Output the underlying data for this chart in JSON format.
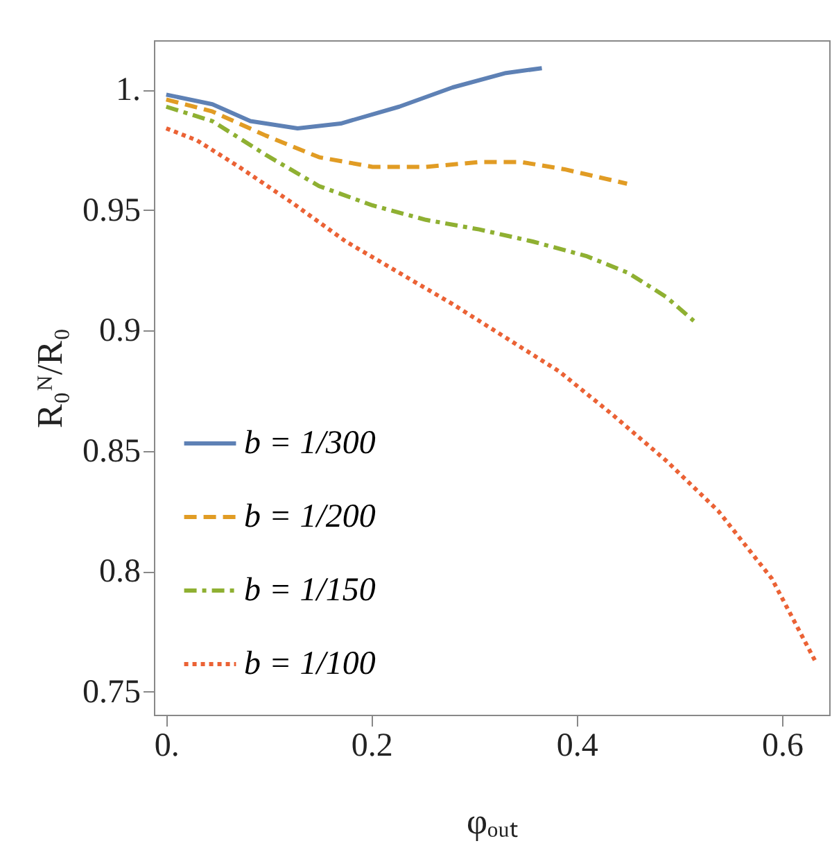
{
  "chart_data": {
    "type": "line",
    "xlabel": "φₒᵤₜ",
    "ylabel": "R₀ᴺ/R₀",
    "xlim": [
      -0.012,
      0.646
    ],
    "ylim": [
      0.7404,
      1.0206
    ],
    "xticks": [
      {
        "value": 0,
        "label": "0."
      },
      0.2,
      0.4,
      0.6
    ],
    "yticks": [
      0.75,
      0.8,
      0.85,
      0.9,
      0.95,
      {
        "value": 1,
        "label": "1."
      }
    ],
    "grid": false,
    "legend": "left",
    "marker": "none",
    "series": [
      {
        "name": "b = 1/300",
        "color": "#5e81b5",
        "line_style": "solid",
        "x": [
          0,
          0.045,
          0.082,
          0.128,
          0.17,
          0.227,
          0.279,
          0.331,
          0.366
        ],
        "values": [
          0.998,
          0.994,
          0.987,
          0.984,
          0.986,
          0.993,
          1.001,
          1.007,
          1.009
        ]
      },
      {
        "name": "b = 1/200",
        "color": "#e19c24",
        "line_style": "dashed",
        "x": [
          0,
          0.045,
          0.097,
          0.149,
          0.201,
          0.253,
          0.305,
          0.346,
          0.388,
          0.449
        ],
        "values": [
          0.996,
          0.991,
          0.981,
          0.972,
          0.968,
          0.968,
          0.97,
          0.97,
          0.967,
          0.961
        ]
      },
      {
        "name": "b = 1/150",
        "color": "#8fb032",
        "line_style": "dashdot",
        "x": [
          0,
          0.045,
          0.097,
          0.149,
          0.201,
          0.253,
          0.305,
          0.357,
          0.409,
          0.45,
          0.487,
          0.514
        ],
        "values": [
          0.993,
          0.987,
          0.973,
          0.96,
          0.952,
          0.946,
          0.942,
          0.937,
          0.931,
          0.924,
          0.914,
          0.904
        ]
      },
      {
        "name": "b = 1/100",
        "color": "#eb6235",
        "line_style": "dotted",
        "x": [
          0,
          0.03,
          0.071,
          0.123,
          0.175,
          0.227,
          0.279,
          0.331,
          0.383,
          0.435,
          0.487,
          0.538,
          0.59,
          0.632
        ],
        "values": [
          0.984,
          0.979,
          0.968,
          0.953,
          0.937,
          0.924,
          0.911,
          0.897,
          0.883,
          0.865,
          0.846,
          0.825,
          0.797,
          0.763
        ]
      }
    ]
  }
}
